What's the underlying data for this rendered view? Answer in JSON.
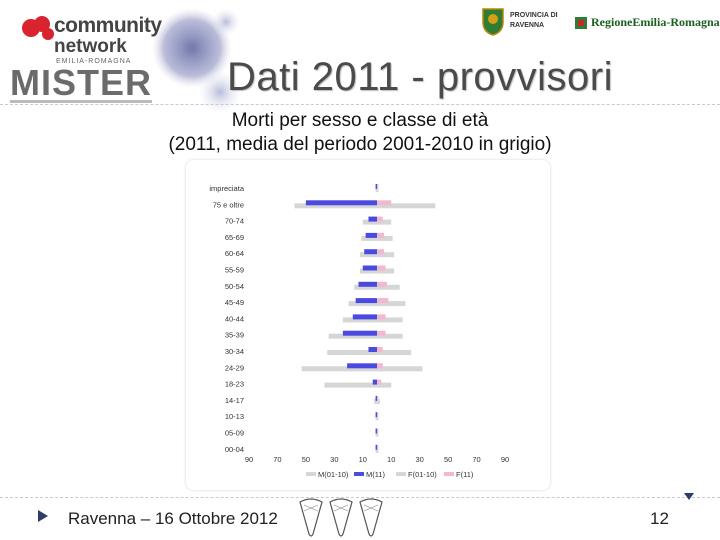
{
  "slide": {
    "title": "Dati 2011 - provvisori",
    "subtitle_line1": "Morti per sesso e classe di età",
    "subtitle_line2": "(2011, media del periodo 2001-2010 in grigio)"
  },
  "logos": {
    "community_line1": "community",
    "community_line2": "network",
    "community_line3": "EMILIA-ROMAGNA",
    "mister": "MISTER",
    "provincia_line1": "PROVINCIA DI",
    "provincia_line2": "RAVENNA",
    "regione": "RegioneEmilia-Romagna"
  },
  "footer": {
    "text": "Ravenna – 16 Ottobre 2012",
    "page_number": "12"
  },
  "colors": {
    "male_2011": "#4a4ae0",
    "female_2011": "#f2b8d0",
    "average_2001_2010": "#d6d6d6",
    "title_text": "#4a4a4a"
  },
  "chart_data": {
    "type": "bar",
    "orientation": "horizontal-population-pyramid",
    "categories": [
      "impreciata",
      "75 e oltre",
      "70-74",
      "65-69",
      "60-64",
      "55-59",
      "50-54",
      "45-49",
      "40-44",
      "35-39",
      "30-34",
      "24-29",
      "18-23",
      "14-17",
      "10-13",
      "05-09",
      "00-04"
    ],
    "series": [
      {
        "name": "M(01-10)",
        "side": "left",
        "values": [
          1,
          58,
          10,
          11,
          12,
          12,
          16,
          20,
          24,
          34,
          35,
          53,
          37,
          2,
          1,
          1,
          1
        ]
      },
      {
        "name": "M(11)",
        "side": "left",
        "values": [
          1,
          50,
          6,
          8,
          9,
          10,
          13,
          15,
          17,
          24,
          6,
          21,
          3,
          1,
          1,
          1,
          1
        ]
      },
      {
        "name": "F(01-10)",
        "side": "right",
        "values": [
          1,
          41,
          10,
          11,
          12,
          12,
          16,
          20,
          18,
          18,
          24,
          32,
          10,
          2,
          1,
          1,
          1
        ]
      },
      {
        "name": "F(11)",
        "side": "right",
        "values": [
          1,
          10,
          4,
          5,
          5,
          6,
          7,
          8,
          6,
          6,
          4,
          4,
          3,
          1,
          1,
          1,
          1
        ]
      }
    ],
    "x_tick_labels": [
      "90",
      "70",
      "50",
      "30",
      "10",
      "10",
      "30",
      "50",
      "70",
      "90"
    ],
    "xlim": [
      -90,
      90
    ],
    "grid": false,
    "legend_position": "bottom"
  }
}
